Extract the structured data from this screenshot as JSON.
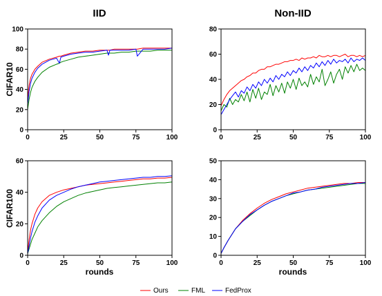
{
  "col_titles": [
    "IID",
    "Non-IID"
  ],
  "row_labels": [
    "CIFAR10",
    "CIFAR100"
  ],
  "xlabel": "rounds",
  "legend": [
    {
      "name": "Ours",
      "color": "#ff0000"
    },
    {
      "name": "FML",
      "color": "#008000"
    },
    {
      "name": "FedProx",
      "color": "#0000ff"
    }
  ],
  "chart_data": [
    {
      "type": "line",
      "panel": "CIFAR10-IID",
      "xlim": [
        0,
        100
      ],
      "ylim": [
        0,
        100
      ],
      "xticks": [
        0,
        25,
        50,
        75,
        100
      ],
      "yticks": [
        0,
        20,
        40,
        60,
        80,
        100
      ],
      "x": [
        0,
        1,
        2,
        3,
        5,
        7,
        10,
        15,
        20,
        22,
        23,
        25,
        30,
        35,
        40,
        45,
        50,
        55,
        56,
        57,
        60,
        65,
        70,
        75,
        76,
        80,
        85,
        90,
        95,
        100
      ],
      "series": [
        {
          "name": "Ours",
          "color": "#ff0000",
          "values": [
            30,
            44,
            51,
            55,
            60,
            63,
            67,
            70,
            72,
            73,
            73,
            74,
            76,
            77,
            78,
            78,
            79,
            79,
            79,
            79,
            80,
            80,
            80,
            80,
            80,
            81,
            81,
            81,
            81,
            81
          ]
        },
        {
          "name": "FML",
          "color": "#008000",
          "values": [
            20,
            30,
            37,
            42,
            48,
            52,
            57,
            62,
            65,
            66,
            67,
            68,
            70,
            72,
            73,
            74,
            75,
            76,
            76,
            76,
            76,
            77,
            77,
            78,
            78,
            78,
            78,
            79,
            79,
            79
          ]
        },
        {
          "name": "FedProx",
          "color": "#0000ff",
          "values": [
            25,
            38,
            46,
            51,
            57,
            61,
            65,
            69,
            71,
            66,
            72,
            73,
            75,
            76,
            77,
            77,
            78,
            79,
            74,
            79,
            79,
            79,
            79,
            80,
            73,
            80,
            80,
            80,
            80,
            81
          ]
        }
      ]
    },
    {
      "type": "line",
      "panel": "CIFAR10-Non-IID",
      "xlim": [
        0,
        100
      ],
      "ylim": [
        0,
        80
      ],
      "xticks": [
        0,
        25,
        50,
        75,
        100
      ],
      "yticks": [
        0,
        20,
        40,
        60,
        80
      ],
      "x": [
        0,
        2,
        4,
        6,
        8,
        10,
        12,
        14,
        16,
        18,
        20,
        22,
        24,
        26,
        28,
        30,
        32,
        34,
        36,
        38,
        40,
        42,
        44,
        46,
        48,
        50,
        52,
        54,
        56,
        58,
        60,
        62,
        64,
        66,
        68,
        70,
        72,
        74,
        76,
        78,
        80,
        82,
        84,
        86,
        88,
        90,
        92,
        94,
        96,
        98,
        100
      ],
      "series": [
        {
          "name": "Ours",
          "color": "#ff0000",
          "values": [
            19,
            24,
            28,
            31,
            33,
            35,
            37,
            39,
            40,
            42,
            43,
            45,
            45,
            47,
            48,
            48,
            50,
            50,
            51,
            52,
            52,
            53,
            54,
            54,
            55,
            55,
            56,
            55,
            57,
            56,
            57,
            57,
            58,
            57,
            59,
            58,
            58,
            59,
            58,
            59,
            59,
            58,
            59,
            60,
            58,
            59,
            59,
            58,
            59,
            58,
            59
          ]
        },
        {
          "name": "FML",
          "color": "#008000",
          "values": [
            15,
            20,
            18,
            25,
            20,
            24,
            22,
            28,
            23,
            30,
            22,
            32,
            25,
            33,
            24,
            30,
            28,
            36,
            27,
            35,
            30,
            37,
            29,
            38,
            33,
            40,
            32,
            41,
            35,
            38,
            34,
            44,
            36,
            42,
            38,
            48,
            35,
            40,
            46,
            37,
            44,
            48,
            40,
            50,
            45,
            51,
            46,
            52,
            47,
            49,
            47
          ]
        },
        {
          "name": "FedProx",
          "color": "#0000ff",
          "values": [
            12,
            16,
            20,
            24,
            27,
            30,
            26,
            31,
            29,
            34,
            31,
            36,
            33,
            38,
            35,
            40,
            37,
            41,
            38,
            43,
            40,
            44,
            42,
            46,
            43,
            47,
            45,
            49,
            46,
            50,
            47,
            51,
            49,
            53,
            50,
            54,
            51,
            55,
            52,
            56,
            53,
            55,
            54,
            56,
            53,
            57,
            54,
            56,
            55,
            57,
            55
          ]
        }
      ]
    },
    {
      "type": "line",
      "panel": "CIFAR100-IID",
      "xlim": [
        0,
        100
      ],
      "ylim": [
        0,
        60
      ],
      "xticks": [
        0,
        25,
        50,
        75,
        100
      ],
      "yticks": [
        0,
        20,
        40,
        60
      ],
      "x": [
        0,
        1,
        2,
        3,
        5,
        7,
        10,
        15,
        20,
        25,
        30,
        35,
        40,
        45,
        50,
        55,
        60,
        65,
        70,
        75,
        80,
        85,
        90,
        95,
        100
      ],
      "series": [
        {
          "name": "Ours",
          "color": "#ff0000",
          "values": [
            2,
            10,
            16,
            20,
            26,
            30,
            34,
            38,
            40,
            41.5,
            42.5,
            43.5,
            44.5,
            45,
            45.5,
            46,
            46.5,
            47,
            47.5,
            48,
            48.5,
            48.5,
            49,
            49,
            49.5
          ]
        },
        {
          "name": "FML",
          "color": "#008000",
          "values": [
            1,
            4,
            7,
            10,
            14,
            18,
            22,
            27,
            31,
            34,
            36,
            38,
            39.5,
            40.5,
            41.5,
            42.5,
            43,
            43.5,
            44,
            44.5,
            45,
            45.5,
            46,
            46,
            46.5
          ]
        },
        {
          "name": "FedProx",
          "color": "#0000ff",
          "values": [
            1,
            6,
            11,
            15,
            21,
            25,
            30,
            35,
            38,
            40,
            42,
            43.5,
            44.5,
            45.5,
            46.5,
            47,
            47.5,
            48,
            48.5,
            49,
            49.5,
            49.5,
            50,
            50,
            50.5
          ]
        }
      ]
    },
    {
      "type": "line",
      "panel": "CIFAR100-Non-IID",
      "xlim": [
        0,
        100
      ],
      "ylim": [
        0,
        50
      ],
      "xticks": [
        0,
        25,
        50,
        75,
        100
      ],
      "yticks": [
        0,
        10,
        20,
        30,
        40,
        50
      ],
      "x": [
        0,
        2,
        5,
        10,
        15,
        20,
        25,
        30,
        35,
        40,
        45,
        50,
        55,
        60,
        65,
        70,
        75,
        80,
        85,
        90,
        95,
        100
      ],
      "series": [
        {
          "name": "Ours",
          "color": "#ff0000",
          "values": [
            1,
            4,
            8,
            14,
            18.5,
            22,
            25,
            27.5,
            29.5,
            31,
            32.5,
            33.5,
            34.5,
            35.5,
            36,
            36.5,
            37,
            37.5,
            38,
            38,
            38.5,
            38.5
          ]
        },
        {
          "name": "FML",
          "color": "#008000",
          "values": [
            1,
            4,
            8,
            14,
            18,
            21,
            24,
            26.5,
            28.5,
            30,
            31.5,
            32.5,
            33.5,
            34.5,
            35,
            35.5,
            36,
            36.5,
            37,
            37.5,
            38,
            38
          ]
        },
        {
          "name": "FedProx",
          "color": "#0000ff",
          "values": [
            1,
            4,
            8,
            14,
            18,
            21.5,
            24,
            26.5,
            28.5,
            30,
            31.5,
            33,
            33.5,
            34.5,
            35,
            36,
            36.5,
            37,
            37.5,
            38,
            38,
            38.5
          ]
        }
      ]
    }
  ]
}
